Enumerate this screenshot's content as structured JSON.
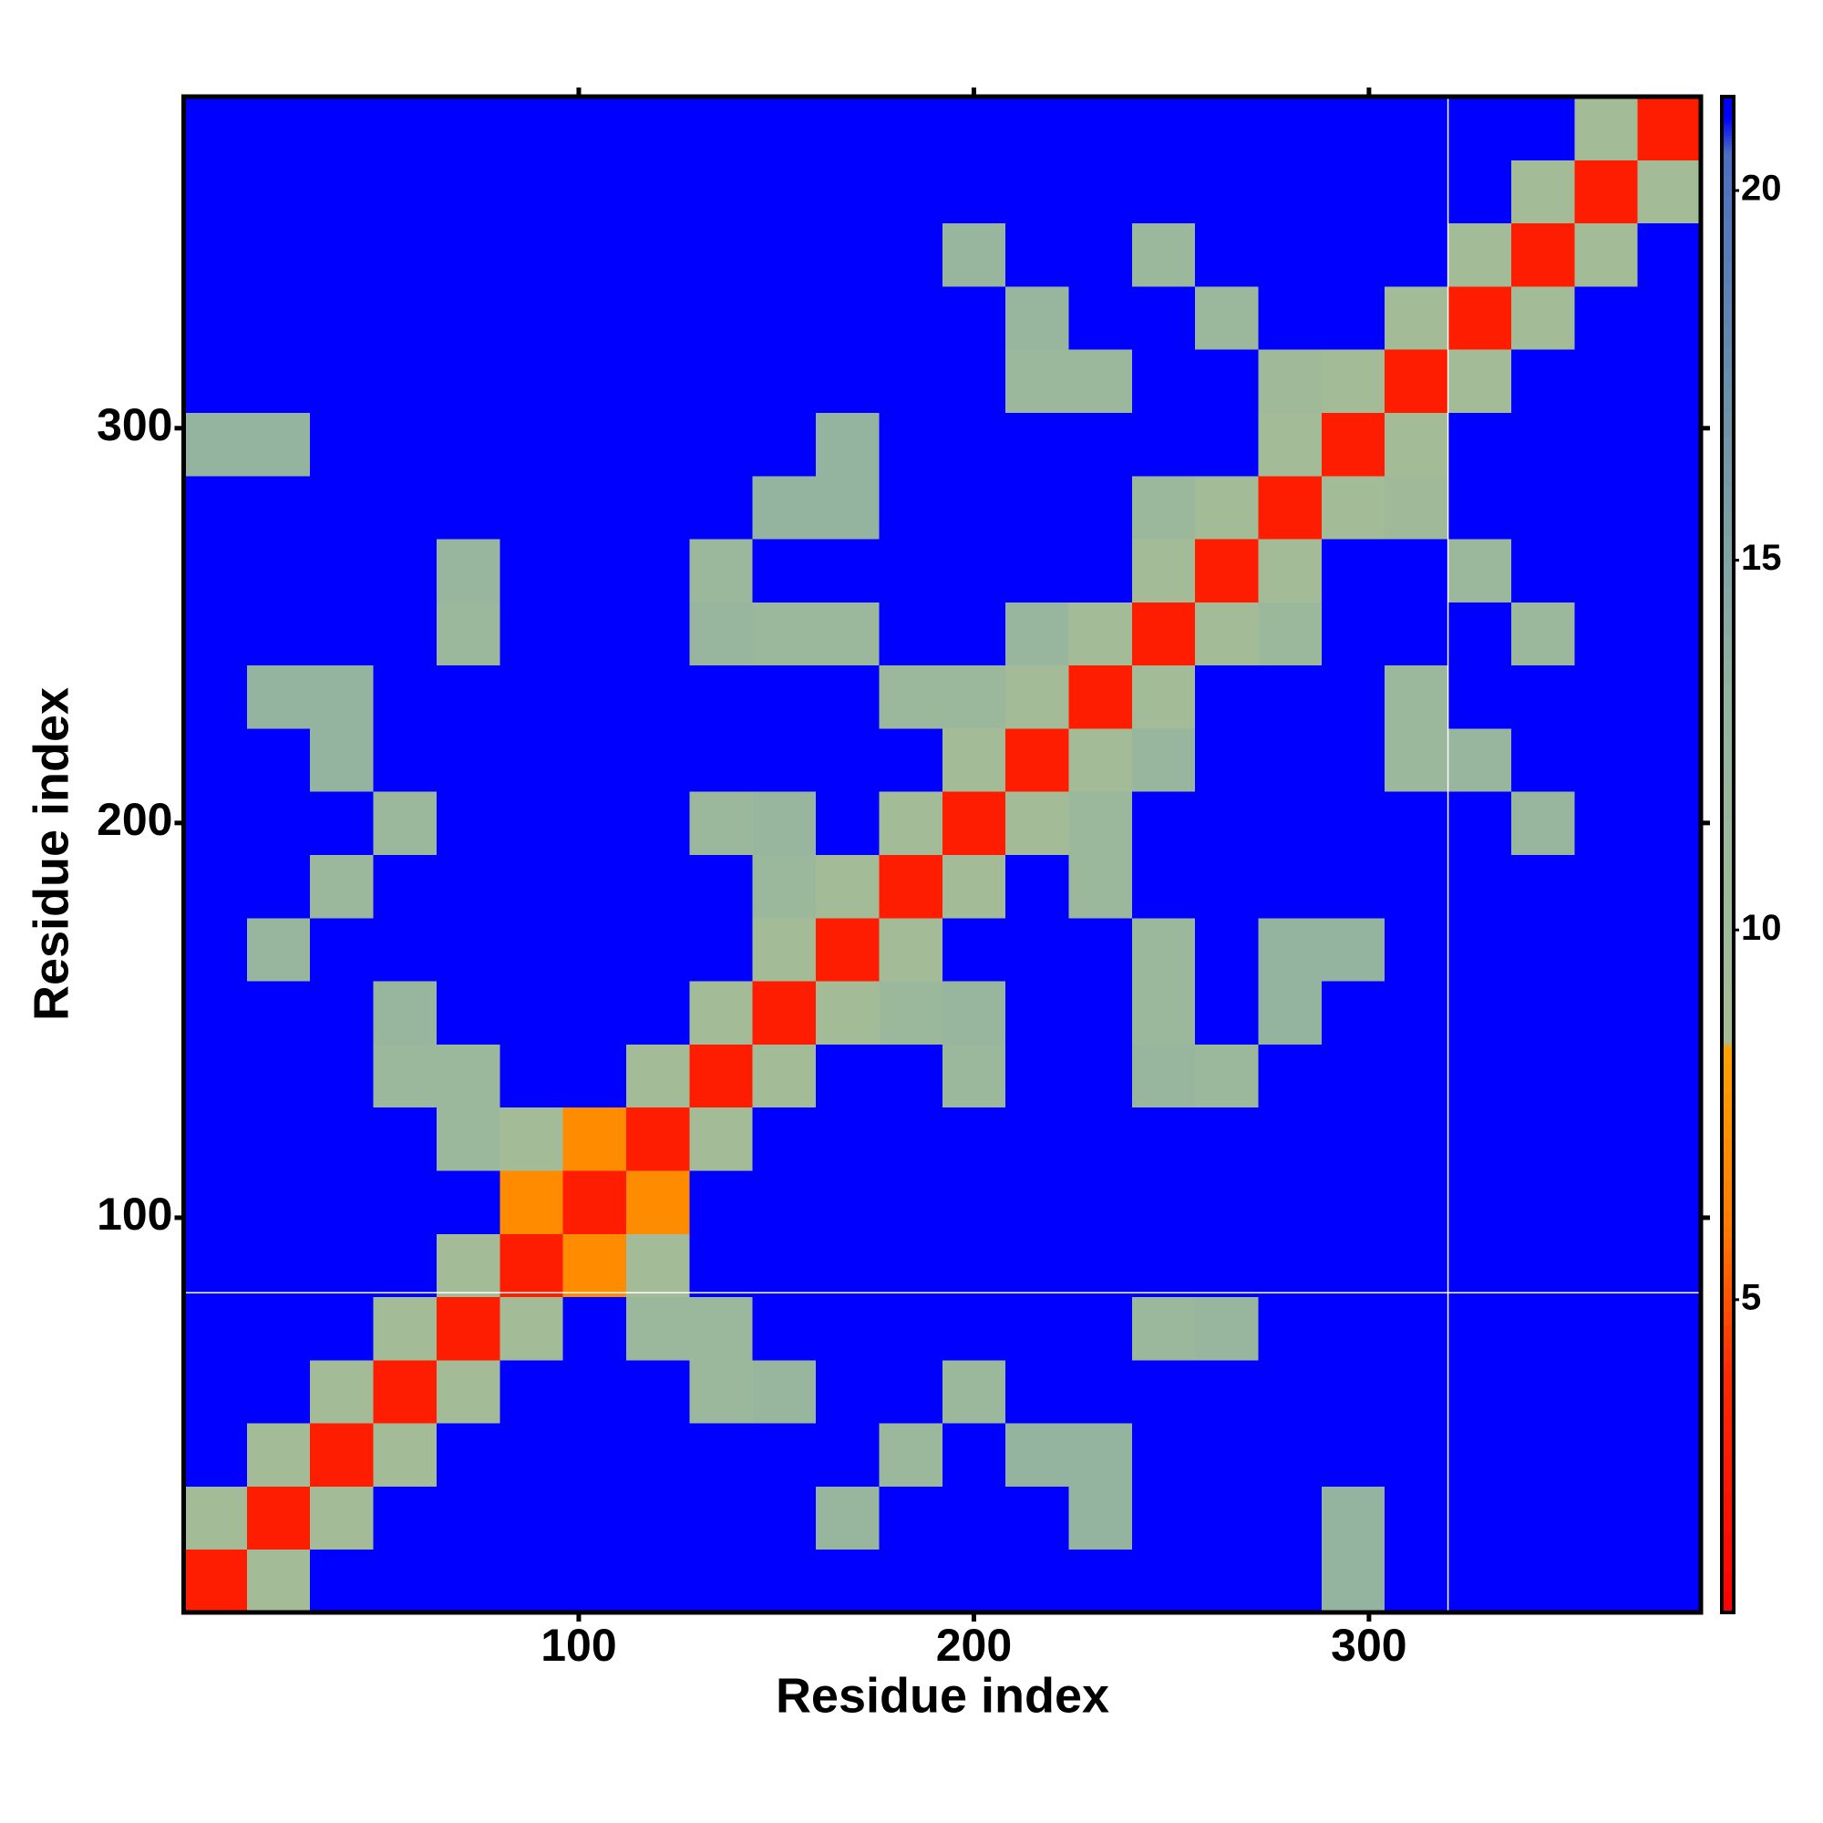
{
  "chart_data": {
    "type": "heatmap",
    "xlabel": "Residue index",
    "ylabel": "Residue index",
    "xlim": [
      0,
      384
    ],
    "ylim": [
      0,
      384
    ],
    "xticks": [
      100,
      200,
      300
    ],
    "yticks": [
      100,
      200,
      300
    ],
    "vline": 320,
    "hline": 81,
    "values": [
      [
        3,
        9,
        21,
        21,
        21,
        21,
        21,
        21,
        21,
        21,
        21,
        21,
        21,
        21,
        21,
        21,
        21,
        21,
        13,
        21,
        21,
        21,
        21,
        21
      ],
      [
        9,
        3,
        9,
        21,
        21,
        21,
        21,
        21,
        21,
        21,
        12,
        21,
        21,
        21,
        13,
        21,
        21,
        21,
        13,
        21,
        21,
        21,
        21,
        21
      ],
      [
        21,
        9,
        3,
        9,
        21,
        21,
        21,
        21,
        21,
        21,
        21,
        11,
        21,
        13,
        13,
        21,
        21,
        21,
        21,
        21,
        21,
        21,
        21,
        21
      ],
      [
        21,
        21,
        9,
        3,
        9,
        21,
        21,
        21,
        11,
        12,
        21,
        21,
        11,
        21,
        21,
        21,
        21,
        21,
        21,
        21,
        21,
        21,
        21,
        21
      ],
      [
        21,
        21,
        21,
        9,
        3,
        9,
        21,
        11,
        11,
        21,
        21,
        21,
        21,
        21,
        21,
        11,
        12,
        21,
        21,
        21,
        21,
        21,
        21,
        21
      ],
      [
        21,
        21,
        21,
        21,
        9,
        3,
        7,
        9,
        21,
        21,
        21,
        21,
        21,
        21,
        21,
        21,
        21,
        21,
        21,
        21,
        21,
        21,
        21,
        21
      ],
      [
        21,
        21,
        21,
        21,
        21,
        7,
        3,
        7,
        21,
        21,
        21,
        21,
        21,
        21,
        21,
        21,
        21,
        21,
        21,
        21,
        21,
        21,
        21,
        21
      ],
      [
        21,
        21,
        21,
        21,
        11,
        9,
        7,
        3,
        9,
        21,
        21,
        21,
        21,
        21,
        21,
        21,
        21,
        21,
        21,
        21,
        21,
        21,
        21,
        21
      ],
      [
        21,
        21,
        21,
        11,
        11,
        21,
        21,
        9,
        3,
        9,
        21,
        21,
        11,
        21,
        21,
        12,
        11,
        21,
        21,
        21,
        21,
        21,
        21,
        21
      ],
      [
        21,
        21,
        21,
        12,
        21,
        21,
        21,
        21,
        9,
        3,
        9,
        11,
        12,
        21,
        21,
        11,
        21,
        13,
        21,
        21,
        21,
        21,
        21,
        21
      ],
      [
        21,
        12,
        21,
        21,
        21,
        21,
        21,
        21,
        21,
        9,
        3,
        9,
        21,
        21,
        21,
        11,
        21,
        13,
        13,
        21,
        21,
        21,
        21,
        21
      ],
      [
        21,
        21,
        11,
        21,
        21,
        21,
        21,
        21,
        21,
        11,
        9,
        3,
        9,
        21,
        11,
        21,
        21,
        21,
        21,
        21,
        21,
        21,
        21,
        21
      ],
      [
        21,
        21,
        21,
        11,
        21,
        21,
        21,
        21,
        11,
        12,
        21,
        9,
        3,
        9,
        11,
        21,
        21,
        21,
        21,
        21,
        21,
        12,
        21,
        21
      ],
      [
        21,
        21,
        13,
        21,
        21,
        21,
        21,
        21,
        21,
        21,
        21,
        21,
        9,
        3,
        9,
        12,
        21,
        21,
        21,
        11,
        12,
        21,
        21,
        21
      ],
      [
        21,
        13,
        13,
        21,
        21,
        21,
        21,
        21,
        21,
        21,
        21,
        11,
        11,
        9,
        3,
        9,
        21,
        21,
        21,
        11,
        21,
        21,
        21,
        21
      ],
      [
        21,
        21,
        21,
        21,
        11,
        21,
        21,
        21,
        12,
        11,
        11,
        21,
        21,
        12,
        9,
        3,
        9,
        11,
        21,
        21,
        21,
        11,
        21,
        21
      ],
      [
        21,
        21,
        21,
        21,
        12,
        21,
        21,
        21,
        11,
        21,
        21,
        21,
        21,
        21,
        21,
        9,
        3,
        9,
        21,
        21,
        11,
        21,
        21,
        21
      ],
      [
        21,
        21,
        21,
        21,
        21,
        21,
        21,
        21,
        21,
        13,
        13,
        21,
        21,
        21,
        21,
        11,
        9,
        3,
        9,
        10,
        21,
        21,
        21,
        21
      ],
      [
        13,
        13,
        21,
        21,
        21,
        21,
        21,
        21,
        21,
        21,
        13,
        21,
        21,
        21,
        21,
        21,
        21,
        9,
        3,
        9,
        21,
        21,
        21,
        21
      ],
      [
        21,
        21,
        21,
        21,
        21,
        21,
        21,
        21,
        21,
        21,
        21,
        21,
        21,
        11,
        11,
        21,
        21,
        10,
        9,
        3,
        9,
        21,
        21,
        21
      ],
      [
        21,
        21,
        21,
        21,
        21,
        21,
        21,
        21,
        21,
        21,
        21,
        21,
        21,
        12,
        21,
        21,
        11,
        21,
        21,
        9,
        3,
        9,
        21,
        21
      ],
      [
        21,
        21,
        21,
        21,
        21,
        21,
        21,
        21,
        21,
        21,
        21,
        21,
        12,
        21,
        21,
        11,
        21,
        21,
        21,
        21,
        9,
        3,
        9,
        21
      ],
      [
        21,
        21,
        21,
        21,
        21,
        21,
        21,
        21,
        21,
        21,
        21,
        21,
        21,
        21,
        21,
        21,
        21,
        21,
        21,
        21,
        21,
        9,
        3,
        9
      ],
      [
        21,
        21,
        21,
        21,
        21,
        21,
        21,
        21,
        21,
        21,
        21,
        21,
        21,
        21,
        21,
        21,
        21,
        21,
        21,
        21,
        21,
        21,
        9,
        3
      ]
    ],
    "colorbar": {
      "lim": [
        0.77,
        21.27
      ],
      "ticks": [
        5,
        10,
        15,
        20
      ],
      "colorscale": [
        [
          0.77,
          "#ff0000"
        ],
        [
          4,
          "#ff2a00"
        ],
        [
          6,
          "#ff7a00"
        ],
        [
          8.4,
          "#ffa200"
        ],
        [
          8.5,
          "#a6bc96"
        ],
        [
          13,
          "#94b4a0"
        ],
        [
          17,
          "#6e92aa"
        ],
        [
          20.5,
          "#4a6fc0"
        ],
        [
          21,
          "#0000ff"
        ],
        [
          21.27,
          "#0000ff"
        ]
      ]
    }
  }
}
